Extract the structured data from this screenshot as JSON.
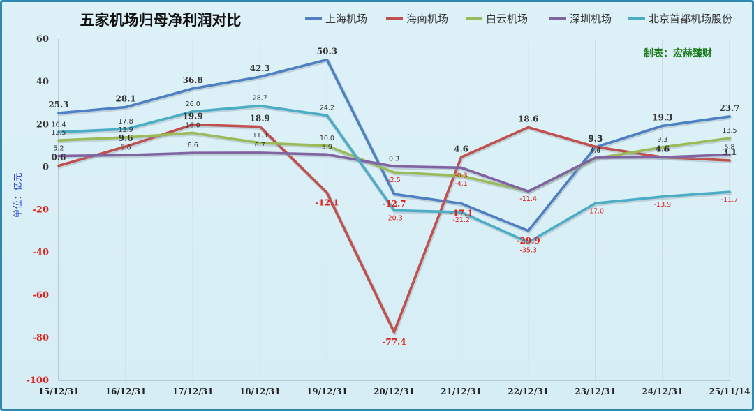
{
  "chart_data": {
    "type": "line",
    "title": "五家机场归母净利润对比",
    "ylabel": "单位：亿元",
    "credit": "制表：宏赫臻财",
    "ylim": [
      -100,
      60
    ],
    "yticks": [
      60,
      40,
      20,
      0,
      -20,
      -40,
      -60,
      -80,
      -100
    ],
    "categories": [
      "15/12/31",
      "16/12/31",
      "17/12/31",
      "18/12/31",
      "19/12/31",
      "20/12/31",
      "21/12/31",
      "22/12/31",
      "23/12/31",
      "24/12/31",
      "25/11/14"
    ],
    "series": [
      {
        "name": "上海机场",
        "color": "#4e7fc2",
        "values": [
          25.3,
          28.1,
          36.8,
          42.3,
          50.3,
          -12.7,
          -17.1,
          -29.9,
          9.3,
          19.3,
          23.7
        ],
        "labels": [
          "25.3",
          "28.1",
          "36.8",
          "42.3",
          "50.3",
          "-12.7",
          "-17.1",
          "-29.9",
          "9.3",
          "19.3",
          "23.7"
        ],
        "label_style": "big"
      },
      {
        "name": "海南机场",
        "color": "#c0504d",
        "values": [
          0.6,
          9.6,
          19.9,
          18.9,
          -12.1,
          -77.4,
          4.6,
          18.6,
          9.5,
          4.6,
          3.1
        ],
        "labels": [
          "0.6",
          "9.6",
          "19.9",
          "18.9",
          "-12.1",
          "-77.4",
          "4.6",
          "18.6",
          "9.5",
          "4.6",
          "3.1"
        ],
        "label_style": "big"
      },
      {
        "name": "白云机场",
        "color": "#9bbb59",
        "values": [
          12.5,
          13.9,
          16.0,
          11.3,
          10.0,
          -2.5,
          -4.1,
          -11.4,
          4.0,
          9.3,
          13.5
        ],
        "labels": [
          "12.5",
          "13.9",
          "16.0",
          "11.3",
          "10.0",
          "-2.5",
          "-4.1",
          "-11.4",
          "4.0",
          "9.3",
          "13.5"
        ],
        "label_style": "small"
      },
      {
        "name": "深圳机场",
        "color": "#8064a2",
        "values": [
          5.2,
          5.6,
          6.6,
          6.7,
          5.9,
          0.3,
          -0.3,
          -11.4,
          4.4,
          4.6,
          5.8
        ],
        "labels": [
          "5.2",
          "5.6",
          "6.6",
          "6.7",
          "5.9",
          "0.3",
          "-0.3",
          "-11.4",
          "4.4",
          "4.6",
          "5.8"
        ],
        "label_style": "small"
      },
      {
        "name": "北京首都机场股份",
        "color": "#4bacc6",
        "values": [
          16.4,
          17.8,
          26.0,
          28.7,
          24.2,
          -20.3,
          -21.2,
          -35.3,
          -17.0,
          -13.9,
          -11.7
        ],
        "labels": [
          "16.4",
          "17.8",
          "26.0",
          "28.7",
          "24.2",
          "-20.3",
          "-21.2",
          "-35.3",
          "-17.0",
          "-13.9",
          "-11.7"
        ],
        "label_style": "small"
      }
    ],
    "grid": true,
    "legend_position": "top"
  }
}
